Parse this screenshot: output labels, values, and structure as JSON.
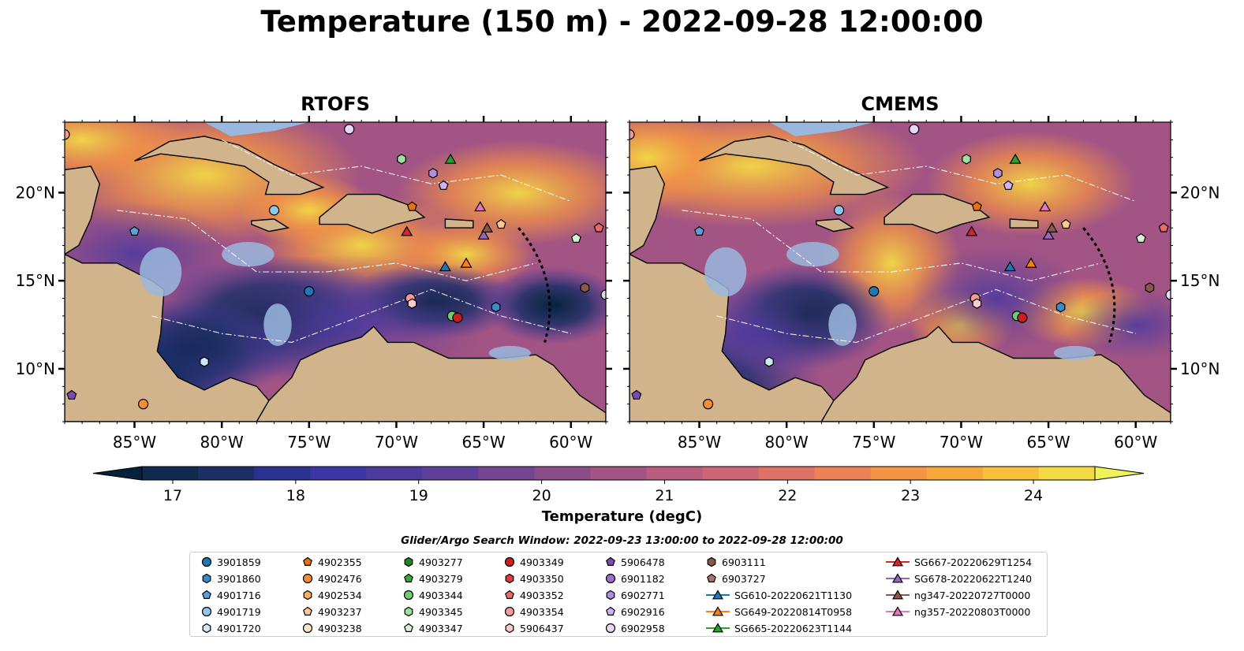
{
  "title": "Temperature (150 m) - 2022-09-28 12:00:00",
  "panels": [
    {
      "title": "RTOFS"
    },
    {
      "title": "CMEMS"
    }
  ],
  "axes": {
    "x_ticks": [
      "85°W",
      "80°W",
      "75°W",
      "70°W",
      "65°W",
      "60°W"
    ],
    "y_ticks": [
      "20°N",
      "15°N",
      "10°N"
    ]
  },
  "colorbar": {
    "label": "Temperature (degC)",
    "ticks": [
      "17",
      "18",
      "19",
      "20",
      "21",
      "22",
      "23",
      "24"
    ],
    "colors": [
      "#05223a",
      "#0f2a4e",
      "#1b2f66",
      "#2a3190",
      "#3b36a4",
      "#4d3a9e",
      "#5f3f97",
      "#744691",
      "#8a4d8a",
      "#a25484",
      "#b95c7e",
      "#cc6674",
      "#de7266",
      "#ec8255",
      "#f59444",
      "#f8a83b",
      "#f7c03c",
      "#f3da45",
      "#eef35a"
    ]
  },
  "legend": {
    "title": "Glider/Argo Search Window: 2022-09-23 13:00:00 to 2022-09-28 12:00:00",
    "items": [
      {
        "label": "3901859",
        "marker": "circle",
        "color": "#1f77b4"
      },
      {
        "label": "3901860",
        "marker": "hexagon",
        "color": "#3b8bc9"
      },
      {
        "label": "4901716",
        "marker": "pentagon",
        "color": "#5aa1d9"
      },
      {
        "label": "4901719",
        "marker": "circle",
        "color": "#8ec7ea"
      },
      {
        "label": "4901720",
        "marker": "hexagon",
        "color": "#cde8f7"
      },
      {
        "label": "4902355",
        "marker": "pentagon",
        "color": "#e6730f"
      },
      {
        "label": "4902476",
        "marker": "circle",
        "color": "#f58d36"
      },
      {
        "label": "4902534",
        "marker": "hexagon",
        "color": "#fbac62"
      },
      {
        "label": "4903237",
        "marker": "pentagon",
        "color": "#fdc994"
      },
      {
        "label": "4903238",
        "marker": "circle",
        "color": "#fde3c7"
      },
      {
        "label": "4903277",
        "marker": "hexagon",
        "color": "#1e8a1e"
      },
      {
        "label": "4903279",
        "marker": "pentagon",
        "color": "#3aa83a"
      },
      {
        "label": "4903344",
        "marker": "circle",
        "color": "#6fcc6f"
      },
      {
        "label": "4903345",
        "marker": "hexagon",
        "color": "#9fe09f"
      },
      {
        "label": "4903347",
        "marker": "pentagon",
        "color": "#d3f5d3"
      },
      {
        "label": "4903349",
        "marker": "circle",
        "color": "#cc1f1f"
      },
      {
        "label": "4903350",
        "marker": "hexagon",
        "color": "#e03c3c"
      },
      {
        "label": "4903352",
        "marker": "pentagon",
        "color": "#ee6868"
      },
      {
        "label": "4903354",
        "marker": "circle",
        "color": "#f59a9a"
      },
      {
        "label": "5906437",
        "marker": "hexagon",
        "color": "#fbcccc"
      },
      {
        "label": "5906478",
        "marker": "pentagon",
        "color": "#7b4bb0"
      },
      {
        "label": "6901182",
        "marker": "circle",
        "color": "#9b6fcc"
      },
      {
        "label": "6902771",
        "marker": "hexagon",
        "color": "#b08fdc"
      },
      {
        "label": "6902916",
        "marker": "pentagon",
        "color": "#cdb3ef"
      },
      {
        "label": "6902958",
        "marker": "circle",
        "color": "#e5d6fa"
      },
      {
        "label": "6903111",
        "marker": "hexagon",
        "color": "#8c564b"
      },
      {
        "label": "6903727",
        "marker": "pentagon",
        "color": "#a87567"
      },
      {
        "label": "SG610-20220621T1130",
        "marker": "triangle-line",
        "color": "#1f77b4"
      },
      {
        "label": "SG649-20220814T0958",
        "marker": "triangle-line",
        "color": "#ff7f0e"
      },
      {
        "label": "SG665-20220623T1144",
        "marker": "triangle-line",
        "color": "#2ca02c"
      },
      {
        "label": "SG667-20220629T1254",
        "marker": "triangle-line",
        "color": "#d62728"
      },
      {
        "label": "SG678-20220622T1240",
        "marker": "triangle-line",
        "color": "#9467bd"
      },
      {
        "label": "ng347-20220727T0000",
        "marker": "triangle-line",
        "color": "#8c564b"
      },
      {
        "label": "ng357-20220803T0000",
        "marker": "triangle-line",
        "color": "#e377c2"
      }
    ]
  },
  "chart_data": [
    {
      "type": "heatmap",
      "title": "RTOFS",
      "xlim": [
        -89,
        -58
      ],
      "ylim": [
        7,
        24
      ],
      "xticks": [
        -85,
        -80,
        -75,
        -70,
        -65,
        -60
      ],
      "yticks": [
        20,
        15,
        10
      ],
      "cbar_range": [
        17,
        24.5
      ],
      "observations": [
        {
          "id": "3901859",
          "lon": -75.0,
          "lat": 14.4
        },
        {
          "id": "4901719",
          "lon": -77.0,
          "lat": 19.0
        },
        {
          "id": "4901716",
          "lon": -85.0,
          "lat": 17.8
        },
        {
          "id": "4901720",
          "lon": -81.0,
          "lat": 10.4
        },
        {
          "id": "4902476",
          "lon": -84.5,
          "lat": 8.0
        },
        {
          "id": "5906478",
          "lon": -88.6,
          "lat": 8.5
        },
        {
          "id": "4903354",
          "lon": -89.0,
          "lat": 23.3
        },
        {
          "id": "4903345",
          "lon": -69.7,
          "lat": 21.9
        },
        {
          "id": "6902771",
          "lon": -67.9,
          "lat": 21.1
        },
        {
          "id": "6902916",
          "lon": -67.3,
          "lat": 20.4
        },
        {
          "id": "4902355",
          "lon": -69.1,
          "lat": 19.2
        },
        {
          "id": "SG665-20220623T1144",
          "lon": -66.9,
          "lat": 21.9
        },
        {
          "id": "ng357-20220803T0000",
          "lon": -65.2,
          "lat": 19.2
        },
        {
          "id": "SG667-20220629T1254",
          "lon": -69.4,
          "lat": 17.8
        },
        {
          "id": "SG678-20220622T1240",
          "lon": -65.0,
          "lat": 17.6
        },
        {
          "id": "ng347-20220727T0000",
          "lon": -64.8,
          "lat": 18.0
        },
        {
          "id": "4903237",
          "lon": -64.0,
          "lat": 18.2
        },
        {
          "id": "4903347",
          "lon": -59.7,
          "lat": 17.4
        },
        {
          "id": "4903352",
          "lon": -58.4,
          "lat": 18.0
        },
        {
          "id": "SG610-20220621T1130",
          "lon": -67.2,
          "lat": 15.8
        },
        {
          "id": "SG649-20220814T0958",
          "lon": -66.0,
          "lat": 16.0
        },
        {
          "id": "4903354",
          "lon": -69.2,
          "lat": 14.0
        },
        {
          "id": "5906437",
          "lon": -69.1,
          "lat": 13.7
        },
        {
          "id": "4903344",
          "lon": -66.8,
          "lat": 13.0
        },
        {
          "id": "4903349",
          "lon": -66.5,
          "lat": 12.9
        },
        {
          "id": "3901860",
          "lon": -64.3,
          "lat": 13.5
        },
        {
          "id": "6903111",
          "lon": -59.2,
          "lat": 14.6
        },
        {
          "id": "6902958",
          "lon": -58.0,
          "lat": 14.2
        },
        {
          "id": "6902958",
          "lon": -72.7,
          "lat": 23.6
        }
      ]
    },
    {
      "type": "heatmap",
      "title": "CMEMS",
      "xlim": [
        -89,
        -58
      ],
      "ylim": [
        7,
        24
      ],
      "xticks": [
        -85,
        -80,
        -75,
        -70,
        -65,
        -60
      ],
      "yticks": [
        20,
        15,
        10
      ],
      "cbar_range": [
        17,
        24.5
      ],
      "observations": "same stations as RTOFS panel"
    }
  ]
}
